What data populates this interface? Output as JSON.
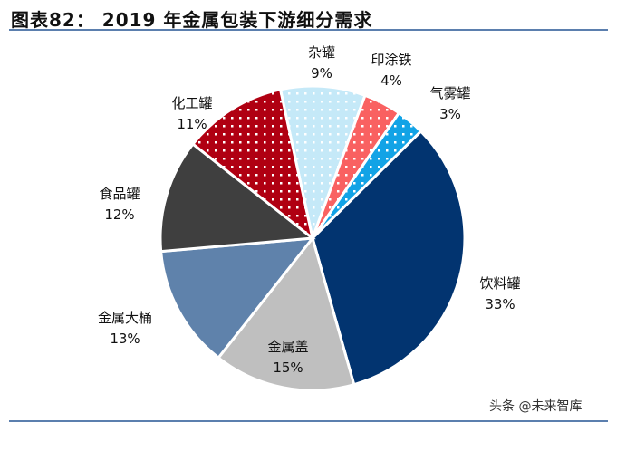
{
  "header": {
    "title": "图表82： 2019 年金属包装下游细分需求"
  },
  "watermark": "头条 @未来智库",
  "chart_data": {
    "type": "pie",
    "title": "2019 年金属包装下游细分需求",
    "unit": "%",
    "categories": [
      "杂罐",
      "印涂铁",
      "气雾罐",
      "饮料罐",
      "金属盖",
      "金属大桶",
      "食品罐",
      "化工罐"
    ],
    "values": [
      9,
      4,
      3,
      33,
      15,
      13,
      12,
      11
    ],
    "labels": [
      "9%",
      "4%",
      "3%",
      "33%",
      "15%",
      "13%",
      "12%",
      "11%"
    ],
    "colors": [
      "#c5e9f8",
      "#f96161",
      "#12a3e6",
      "#023470",
      "#bfbfbf",
      "#5f82ab",
      "#3f3f3f",
      "#b00012"
    ],
    "dotted": [
      true,
      true,
      true,
      false,
      false,
      false,
      false,
      true
    ],
    "direction": "clockwise",
    "legend": "none"
  }
}
